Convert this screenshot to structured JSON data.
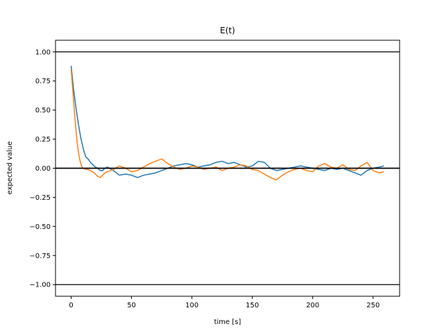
{
  "chart_data": {
    "type": "line",
    "title": "E(t)",
    "xlabel": "time [s]",
    "ylabel": "expected value",
    "xlim": [
      -12.95,
      271.95
    ],
    "ylim": [
      -1.1,
      1.1
    ],
    "xticks": [
      0,
      50,
      100,
      150,
      200,
      250
    ],
    "xtick_labels": [
      "0",
      "50",
      "100",
      "150",
      "200",
      "250"
    ],
    "yticks": [
      -1.0,
      -0.75,
      -0.5,
      -0.25,
      0.0,
      0.25,
      0.5,
      0.75,
      1.0
    ],
    "ytick_labels": [
      "−1.00",
      "−0.75",
      "−0.50",
      "−0.25",
      "0.00",
      "0.25",
      "0.50",
      "0.75",
      "1.00"
    ],
    "grid": false,
    "reference_lines": [
      1.0,
      0.0,
      -1.0
    ],
    "series": [
      {
        "color": "#1f77b4",
        "x": [
          0,
          2,
          4,
          6,
          8,
          10,
          12,
          14,
          16,
          18,
          20,
          22,
          24,
          26,
          28,
          30,
          35,
          40,
          45,
          50,
          55,
          60,
          65,
          70,
          75,
          80,
          85,
          90,
          95,
          100,
          105,
          110,
          115,
          120,
          125,
          130,
          135,
          140,
          145,
          150,
          155,
          160,
          165,
          170,
          175,
          180,
          185,
          190,
          195,
          200,
          205,
          210,
          215,
          220,
          225,
          230,
          235,
          240,
          245,
          250,
          255,
          259
        ],
        "y": [
          0.88,
          0.68,
          0.52,
          0.38,
          0.26,
          0.17,
          0.1,
          0.08,
          0.05,
          0.03,
          0.01,
          0.0,
          -0.02,
          -0.02,
          0.0,
          0.01,
          -0.02,
          -0.06,
          -0.05,
          -0.06,
          -0.08,
          -0.06,
          -0.05,
          -0.04,
          -0.02,
          0.0,
          0.02,
          0.03,
          0.04,
          0.03,
          0.01,
          0.02,
          0.03,
          0.05,
          0.06,
          0.04,
          0.05,
          0.03,
          0.01,
          0.02,
          0.06,
          0.05,
          0.0,
          -0.02,
          -0.01,
          0.0,
          0.01,
          0.02,
          0.01,
          0.0,
          -0.01,
          -0.02,
          0.0,
          -0.01,
          0.0,
          -0.02,
          -0.04,
          -0.06,
          -0.02,
          0.0,
          0.01,
          0.02
        ]
      },
      {
        "color": "#ff7f0e",
        "x": [
          0,
          1,
          2,
          3,
          4,
          5,
          6,
          7,
          8,
          9,
          10,
          12,
          14,
          16,
          18,
          20,
          22,
          24,
          26,
          28,
          30,
          35,
          40,
          45,
          50,
          55,
          60,
          65,
          70,
          75,
          80,
          85,
          90,
          95,
          100,
          105,
          110,
          115,
          120,
          125,
          130,
          135,
          140,
          145,
          150,
          155,
          160,
          165,
          170,
          175,
          180,
          185,
          190,
          195,
          200,
          205,
          210,
          215,
          220,
          225,
          230,
          235,
          240,
          245,
          250,
          255,
          259
        ],
        "y": [
          0.85,
          0.72,
          0.58,
          0.45,
          0.33,
          0.22,
          0.14,
          0.08,
          0.04,
          0.01,
          0.0,
          -0.01,
          -0.01,
          -0.02,
          -0.03,
          -0.05,
          -0.07,
          -0.08,
          -0.06,
          -0.04,
          -0.03,
          -0.01,
          0.02,
          0.0,
          -0.03,
          -0.02,
          0.01,
          0.04,
          0.06,
          0.08,
          0.04,
          0.01,
          -0.01,
          0.0,
          0.02,
          0.01,
          -0.01,
          0.0,
          0.01,
          -0.02,
          0.0,
          0.01,
          0.03,
          0.02,
          -0.01,
          -0.02,
          -0.05,
          -0.08,
          -0.1,
          -0.06,
          -0.03,
          -0.01,
          0.0,
          -0.02,
          -0.03,
          0.02,
          0.04,
          0.01,
          0.0,
          0.03,
          -0.01,
          -0.02,
          0.02,
          0.05,
          -0.02,
          -0.04,
          -0.03
        ]
      }
    ]
  }
}
